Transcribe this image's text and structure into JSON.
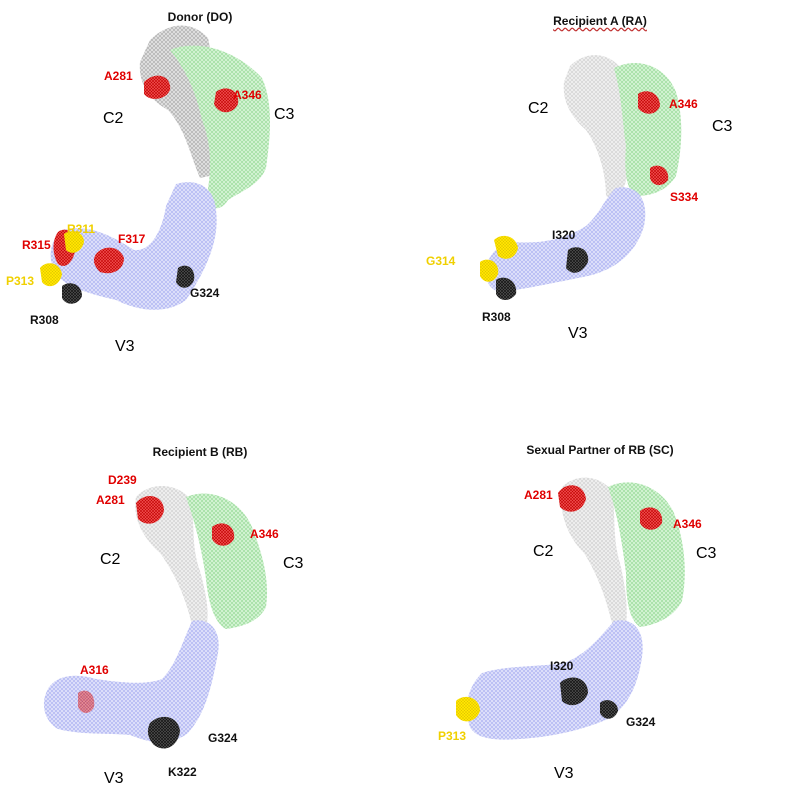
{
  "panels": {
    "do": {
      "title": "Donor (DO)",
      "regions": {
        "c2": "C2",
        "c3": "C3",
        "v3": "V3"
      },
      "labels": {
        "a281": "A281",
        "a346": "A346",
        "r311": "R311",
        "r315": "R315",
        "f317": "F317",
        "p313": "P313",
        "g324": "G324",
        "r308": "R308"
      }
    },
    "ra": {
      "title": "Recipient A (RA)",
      "regions": {
        "c2": "C2",
        "c3": "C3",
        "v3": "V3"
      },
      "labels": {
        "a346": "A346",
        "s334": "S334",
        "i320": "I320",
        "g314": "G314",
        "r308": "R308"
      }
    },
    "rb": {
      "title": "Recipient B (RB)",
      "regions": {
        "c2": "C2",
        "c3": "C3",
        "v3": "V3"
      },
      "labels": {
        "d239": "D239",
        "a281": "A281",
        "a346": "A346",
        "a316": "A316",
        "g324": "G324",
        "k322": "K322"
      }
    },
    "sc": {
      "title": "Sexual Partner of RB (SC)",
      "regions": {
        "c2": "C2",
        "c3": "C3",
        "v3": "V3"
      },
      "labels": {
        "a281": "A281",
        "a346": "A346",
        "i320": "I320",
        "g324": "G324",
        "p313": "P313"
      }
    }
  },
  "colors": {
    "c2_region": "#c8c8c8",
    "c3_region": "#b8e8b8",
    "v3_region": "#c4c8f4",
    "mutation_red": "#e00000",
    "mutation_yellow": "#f0d000",
    "mutation_black": "#222222"
  }
}
